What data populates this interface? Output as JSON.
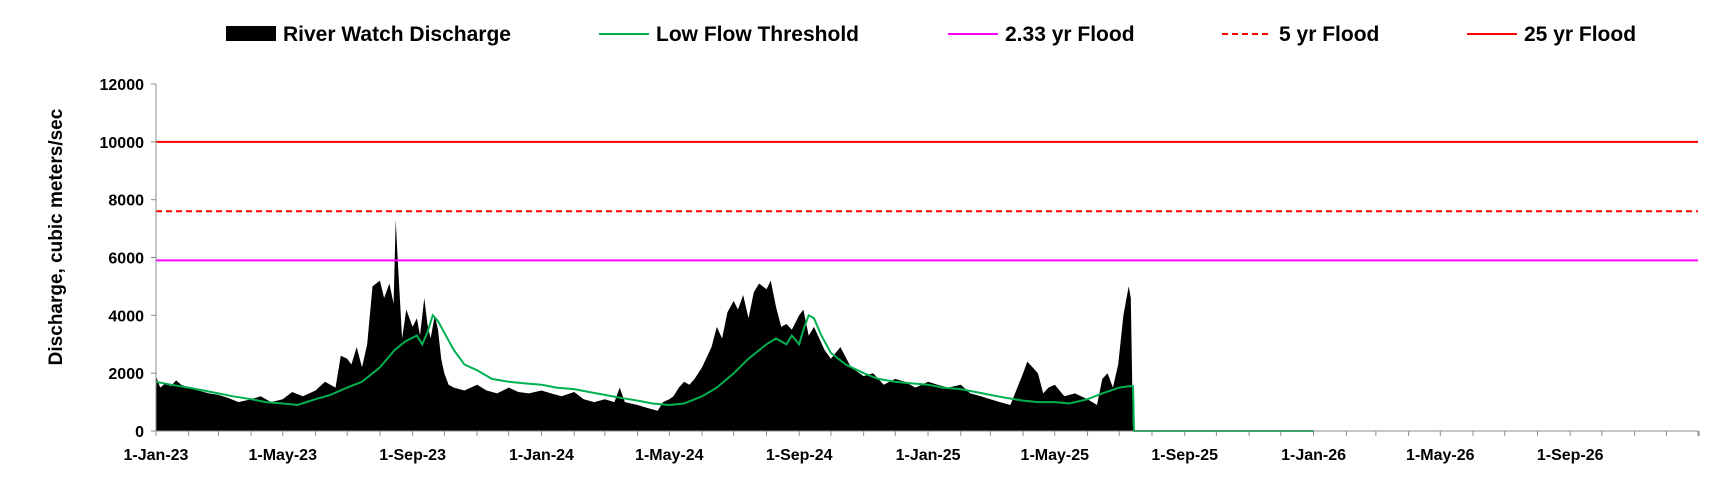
{
  "chart_data": {
    "type": "area",
    "title": "",
    "xlabel": "",
    "ylabel": "Discharge, cubic meters/sec",
    "ylim": [
      0,
      12000
    ],
    "yticks": [
      "0",
      "2000",
      "4000",
      "6000",
      "8000",
      "10000",
      "12000"
    ],
    "xlim": [
      "2023-01-01",
      "2026-12-31"
    ],
    "xticks": [
      {
        "date": "2023-01-01",
        "label": "1-Jan-23"
      },
      {
        "date": "2023-05-01",
        "label": "1-May-23"
      },
      {
        "date": "2023-09-01",
        "label": "1-Sep-23"
      },
      {
        "date": "2024-01-01",
        "label": "1-Jan-24"
      },
      {
        "date": "2024-05-01",
        "label": "1-May-24"
      },
      {
        "date": "2024-09-01",
        "label": "1-Sep-24"
      },
      {
        "date": "2025-01-01",
        "label": "1-Jan-25"
      },
      {
        "date": "2025-05-01",
        "label": "1-May-25"
      },
      {
        "date": "2025-09-01",
        "label": "1-Sep-25"
      },
      {
        "date": "2026-01-01",
        "label": "1-Jan-26"
      },
      {
        "date": "2026-05-01",
        "label": "1-May-26"
      },
      {
        "date": "2026-09-01",
        "label": "1-Sep-26"
      }
    ],
    "grid": false,
    "legend_position": "top",
    "series": [
      {
        "name": "River Watch Discharge",
        "kind": "area",
        "color": "#000000",
        "points": [
          [
            "2023-01-01",
            1900
          ],
          [
            "2023-01-05",
            1500
          ],
          [
            "2023-01-10",
            1650
          ],
          [
            "2023-01-15",
            1550
          ],
          [
            "2023-01-20",
            1750
          ],
          [
            "2023-01-25",
            1600
          ],
          [
            "2023-02-01",
            1500
          ],
          [
            "2023-02-10",
            1400
          ],
          [
            "2023-02-20",
            1300
          ],
          [
            "2023-03-01",
            1250
          ],
          [
            "2023-03-10",
            1150
          ],
          [
            "2023-03-20",
            1000
          ],
          [
            "2023-04-01",
            1100
          ],
          [
            "2023-04-10",
            1200
          ],
          [
            "2023-04-20",
            1000
          ],
          [
            "2023-05-01",
            1100
          ],
          [
            "2023-05-10",
            1350
          ],
          [
            "2023-05-20",
            1200
          ],
          [
            "2023-06-01",
            1400
          ],
          [
            "2023-06-10",
            1700
          ],
          [
            "2023-06-20",
            1500
          ],
          [
            "2023-06-25",
            2600
          ],
          [
            "2023-07-01",
            2500
          ],
          [
            "2023-07-05",
            2300
          ],
          [
            "2023-07-10",
            2900
          ],
          [
            "2023-07-15",
            2200
          ],
          [
            "2023-07-20",
            3000
          ],
          [
            "2023-07-25",
            5000
          ],
          [
            "2023-08-01",
            5200
          ],
          [
            "2023-08-05",
            4600
          ],
          [
            "2023-08-10",
            5100
          ],
          [
            "2023-08-14",
            4400
          ],
          [
            "2023-08-16",
            7300
          ],
          [
            "2023-08-18",
            5800
          ],
          [
            "2023-08-22",
            3200
          ],
          [
            "2023-08-26",
            4200
          ],
          [
            "2023-09-01",
            3600
          ],
          [
            "2023-09-05",
            3900
          ],
          [
            "2023-09-08",
            3300
          ],
          [
            "2023-09-12",
            4600
          ],
          [
            "2023-09-15",
            3700
          ],
          [
            "2023-09-18",
            3200
          ],
          [
            "2023-09-22",
            4000
          ],
          [
            "2023-09-25",
            3500
          ],
          [
            "2023-09-28",
            2500
          ],
          [
            "2023-10-01",
            2000
          ],
          [
            "2023-10-05",
            1600
          ],
          [
            "2023-10-10",
            1500
          ],
          [
            "2023-10-20",
            1400
          ],
          [
            "2023-11-01",
            1600
          ],
          [
            "2023-11-10",
            1400
          ],
          [
            "2023-11-20",
            1300
          ],
          [
            "2023-12-01",
            1500
          ],
          [
            "2023-12-10",
            1350
          ],
          [
            "2023-12-20",
            1300
          ],
          [
            "2024-01-01",
            1400
          ],
          [
            "2024-01-10",
            1300
          ],
          [
            "2024-01-20",
            1200
          ],
          [
            "2024-02-01",
            1350
          ],
          [
            "2024-02-10",
            1100
          ],
          [
            "2024-02-20",
            1000
          ],
          [
            "2024-03-01",
            1100
          ],
          [
            "2024-03-10",
            1000
          ],
          [
            "2024-03-15",
            1500
          ],
          [
            "2024-03-20",
            1000
          ],
          [
            "2024-04-01",
            900
          ],
          [
            "2024-04-10",
            800
          ],
          [
            "2024-04-20",
            700
          ],
          [
            "2024-04-25",
            1000
          ],
          [
            "2024-05-01",
            1100
          ],
          [
            "2024-05-05",
            1200
          ],
          [
            "2024-05-10",
            1500
          ],
          [
            "2024-05-15",
            1700
          ],
          [
            "2024-05-20",
            1600
          ],
          [
            "2024-05-25",
            1800
          ],
          [
            "2024-06-01",
            2200
          ],
          [
            "2024-06-10",
            2900
          ],
          [
            "2024-06-15",
            3600
          ],
          [
            "2024-06-20",
            3200
          ],
          [
            "2024-06-25",
            4100
          ],
          [
            "2024-07-01",
            4500
          ],
          [
            "2024-07-05",
            4200
          ],
          [
            "2024-07-10",
            4700
          ],
          [
            "2024-07-15",
            3900
          ],
          [
            "2024-07-20",
            4800
          ],
          [
            "2024-07-25",
            5100
          ],
          [
            "2024-08-01",
            4900
          ],
          [
            "2024-08-05",
            5200
          ],
          [
            "2024-08-10",
            4300
          ],
          [
            "2024-08-15",
            3600
          ],
          [
            "2024-08-20",
            3700
          ],
          [
            "2024-08-25",
            3500
          ],
          [
            "2024-09-01",
            4000
          ],
          [
            "2024-09-05",
            4200
          ],
          [
            "2024-09-10",
            3300
          ],
          [
            "2024-09-15",
            3600
          ],
          [
            "2024-09-20",
            3200
          ],
          [
            "2024-09-25",
            2800
          ],
          [
            "2024-10-01",
            2500
          ],
          [
            "2024-10-10",
            2900
          ],
          [
            "2024-10-20",
            2200
          ],
          [
            "2024-11-01",
            1900
          ],
          [
            "2024-11-10",
            2000
          ],
          [
            "2024-11-20",
            1600
          ],
          [
            "2024-12-01",
            1800
          ],
          [
            "2024-12-10",
            1700
          ],
          [
            "2024-12-20",
            1500
          ],
          [
            "2025-01-01",
            1700
          ],
          [
            "2025-01-10",
            1600
          ],
          [
            "2025-01-20",
            1500
          ],
          [
            "2025-02-01",
            1600
          ],
          [
            "2025-02-10",
            1300
          ],
          [
            "2025-02-20",
            1200
          ],
          [
            "2025-03-01",
            1100
          ],
          [
            "2025-03-10",
            1000
          ],
          [
            "2025-03-20",
            900
          ],
          [
            "2025-04-01",
            2000
          ],
          [
            "2025-04-05",
            2400
          ],
          [
            "2025-04-10",
            2200
          ],
          [
            "2025-04-15",
            2000
          ],
          [
            "2025-04-20",
            1300
          ],
          [
            "2025-04-25",
            1500
          ],
          [
            "2025-05-01",
            1600
          ],
          [
            "2025-05-10",
            1200
          ],
          [
            "2025-05-20",
            1300
          ],
          [
            "2025-06-01",
            1100
          ],
          [
            "2025-06-10",
            900
          ],
          [
            "2025-06-15",
            1800
          ],
          [
            "2025-06-20",
            2000
          ],
          [
            "2025-06-25",
            1500
          ],
          [
            "2025-06-30",
            2300
          ],
          [
            "2025-07-05",
            4000
          ],
          [
            "2025-07-10",
            5000
          ],
          [
            "2025-07-12",
            4600
          ],
          [
            "2025-07-14",
            0
          ]
        ]
      },
      {
        "name": "Low Flow Threshold",
        "kind": "line",
        "color": "#00b050",
        "points": [
          [
            "2023-01-01",
            1700
          ],
          [
            "2023-01-15",
            1600
          ],
          [
            "2023-02-01",
            1500
          ],
          [
            "2023-02-15",
            1400
          ],
          [
            "2023-03-01",
            1300
          ],
          [
            "2023-03-15",
            1200
          ],
          [
            "2023-04-01",
            1100
          ],
          [
            "2023-04-15",
            1000
          ],
          [
            "2023-05-01",
            950
          ],
          [
            "2023-05-15",
            900
          ],
          [
            "2023-06-01",
            1100
          ],
          [
            "2023-06-15",
            1250
          ],
          [
            "2023-07-01",
            1500
          ],
          [
            "2023-07-15",
            1700
          ],
          [
            "2023-08-01",
            2200
          ],
          [
            "2023-08-15",
            2800
          ],
          [
            "2023-08-25",
            3100
          ],
          [
            "2023-09-05",
            3300
          ],
          [
            "2023-09-10",
            3000
          ],
          [
            "2023-09-15",
            3400
          ],
          [
            "2023-09-20",
            4000
          ],
          [
            "2023-09-25",
            3800
          ],
          [
            "2023-10-01",
            3400
          ],
          [
            "2023-10-10",
            2800
          ],
          [
            "2023-10-20",
            2300
          ],
          [
            "2023-11-01",
            2100
          ],
          [
            "2023-11-15",
            1800
          ],
          [
            "2023-12-01",
            1700
          ],
          [
            "2023-12-15",
            1650
          ],
          [
            "2024-01-01",
            1600
          ],
          [
            "2024-01-15",
            1500
          ],
          [
            "2024-02-01",
            1450
          ],
          [
            "2024-02-15",
            1350
          ],
          [
            "2024-03-01",
            1250
          ],
          [
            "2024-03-15",
            1150
          ],
          [
            "2024-04-01",
            1050
          ],
          [
            "2024-04-15",
            950
          ],
          [
            "2024-05-01",
            900
          ],
          [
            "2024-05-15",
            950
          ],
          [
            "2024-06-01",
            1200
          ],
          [
            "2024-06-15",
            1500
          ],
          [
            "2024-07-01",
            2000
          ],
          [
            "2024-07-15",
            2500
          ],
          [
            "2024-08-01",
            3000
          ],
          [
            "2024-08-10",
            3200
          ],
          [
            "2024-08-20",
            3000
          ],
          [
            "2024-08-25",
            3300
          ],
          [
            "2024-09-01",
            3000
          ],
          [
            "2024-09-05",
            3500
          ],
          [
            "2024-09-10",
            4000
          ],
          [
            "2024-09-15",
            3900
          ],
          [
            "2024-09-22",
            3300
          ],
          [
            "2024-10-01",
            2700
          ],
          [
            "2024-10-15",
            2300
          ],
          [
            "2024-11-01",
            2000
          ],
          [
            "2024-11-15",
            1800
          ],
          [
            "2024-12-01",
            1700
          ],
          [
            "2024-12-15",
            1650
          ],
          [
            "2025-01-01",
            1600
          ],
          [
            "2025-01-15",
            1500
          ],
          [
            "2025-02-01",
            1450
          ],
          [
            "2025-02-15",
            1350
          ],
          [
            "2025-03-01",
            1250
          ],
          [
            "2025-03-15",
            1150
          ],
          [
            "2025-04-01",
            1050
          ],
          [
            "2025-04-15",
            1000
          ],
          [
            "2025-05-01",
            1000
          ],
          [
            "2025-05-15",
            950
          ],
          [
            "2025-06-01",
            1100
          ],
          [
            "2025-06-15",
            1300
          ],
          [
            "2025-07-01",
            1500
          ],
          [
            "2025-07-10",
            1550
          ],
          [
            "2025-07-14",
            1550
          ],
          [
            "2025-07-15",
            0
          ],
          [
            "2026-01-01",
            0
          ]
        ]
      },
      {
        "name": "2.33 yr Flood",
        "kind": "hline",
        "value": 5900,
        "color": "#ff00ff",
        "dash": "solid"
      },
      {
        "name": "5 yr Flood",
        "kind": "hline",
        "value": 7600,
        "color": "#ff0000",
        "dash": "dashed"
      },
      {
        "name": "25 yr Flood",
        "kind": "hline",
        "value": 10000,
        "color": "#ff0000",
        "dash": "solid"
      }
    ]
  }
}
